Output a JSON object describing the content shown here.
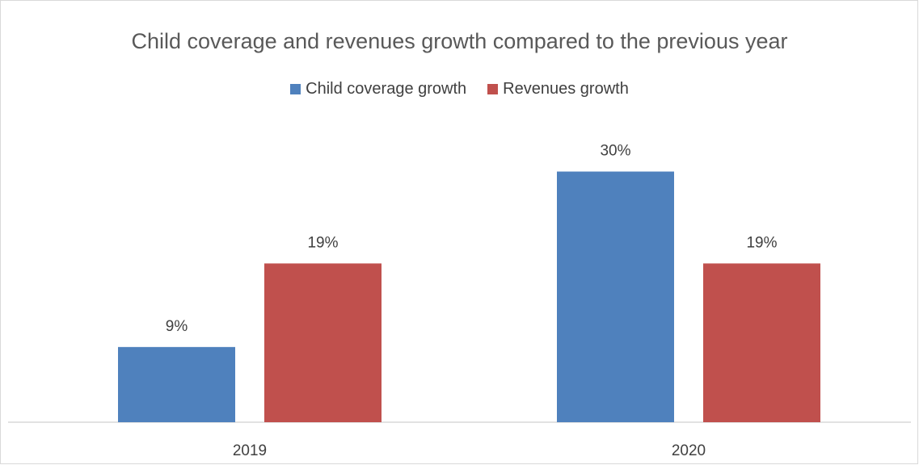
{
  "chart_data": {
    "type": "bar",
    "title": "Child coverage and revenues growth compared to the previous year",
    "categories": [
      "2019",
      "2020"
    ],
    "series": [
      {
        "name": "Child coverage growth",
        "values": [
          9,
          30
        ],
        "labels": [
          "9%",
          "30%"
        ],
        "color": "#4f81bd"
      },
      {
        "name": "Revenues growth",
        "values": [
          19,
          19
        ],
        "labels": [
          "19%",
          "19%"
        ],
        "color": "#c0504d"
      }
    ],
    "ylim": [
      0,
      40
    ],
    "grid": false,
    "legend": "top-center"
  }
}
